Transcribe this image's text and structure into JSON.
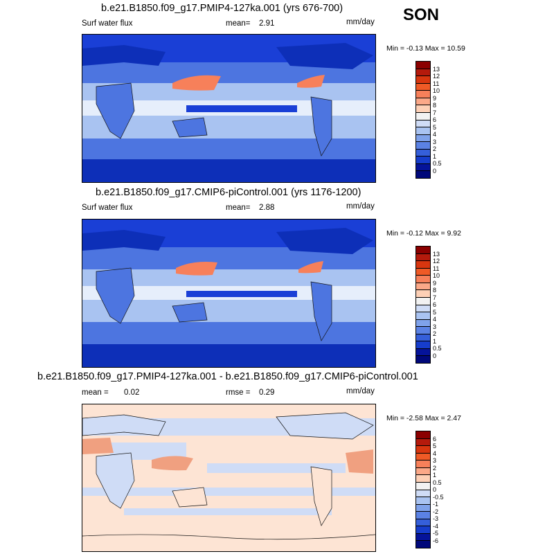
{
  "season": "SON",
  "panels": [
    {
      "title": "b.e21.B1850.f09_g17.PMIP4-127ka.001 (yrs 676-700)",
      "left_label": "Surf water flux",
      "stat_label": "mean=",
      "stat_value": "2.91",
      "units": "mm/day",
      "minmax": "Min =  -0.13 Max =  10.59",
      "colorbar_levels": [
        "13",
        "12",
        "11",
        "10",
        "9",
        "8",
        "7",
        "6",
        "5",
        "4",
        "3",
        "2",
        "1",
        "0.5",
        "0"
      ]
    },
    {
      "title": "b.e21.B1850.f09_g17.CMIP6-piControl.001 (yrs 1176-1200)",
      "left_label": "Surf water flux",
      "stat_label": "mean=",
      "stat_value": "2.88",
      "units": "mm/day",
      "minmax": "Min =  -0.12 Max =  9.92",
      "colorbar_levels": [
        "13",
        "12",
        "11",
        "10",
        "9",
        "8",
        "7",
        "6",
        "5",
        "4",
        "3",
        "2",
        "1",
        "0.5",
        "0"
      ]
    },
    {
      "title": "b.e21.B1850.f09_g17.PMIP4-127ka.001 - b.e21.B1850.f09_g17.CMIP6-piControl.001",
      "mean_label": "mean =",
      "mean_value": "0.02",
      "rmse_label": "rmse =",
      "rmse_value": "0.29",
      "units": "mm/day",
      "minmax": "Min =  -2.58 Max =  2.47",
      "colorbar_levels": [
        "6",
        "5",
        "4",
        "3",
        "2",
        "1",
        "0.5",
        "0",
        "-0.5",
        "-1",
        "-2",
        "-3",
        "-4",
        "-5",
        "-6"
      ]
    }
  ],
  "colorbar_colors": [
    "#8b0000",
    "#b51a0c",
    "#d8360f",
    "#ef5a26",
    "#f7805a",
    "#fba888",
    "#fdd0b6",
    "#f2f2f2",
    "#cfdcf6",
    "#a9c3f1",
    "#7fa2ea",
    "#5b82e4",
    "#355fda",
    "#163dcc",
    "#05139a",
    "#00087a"
  ],
  "map_colors": {
    "deep_ocean": "#1a3fd6",
    "mid_blue": "#4d75e0",
    "light_blue": "#a9c3f1",
    "pale": "#e6eefb",
    "land_dark": "#0d2fb8",
    "warm": "#f7805a",
    "diff_bg": "#fde4d4",
    "diff_blue": "#cfdcf6",
    "diff_red": "#f0a080"
  }
}
